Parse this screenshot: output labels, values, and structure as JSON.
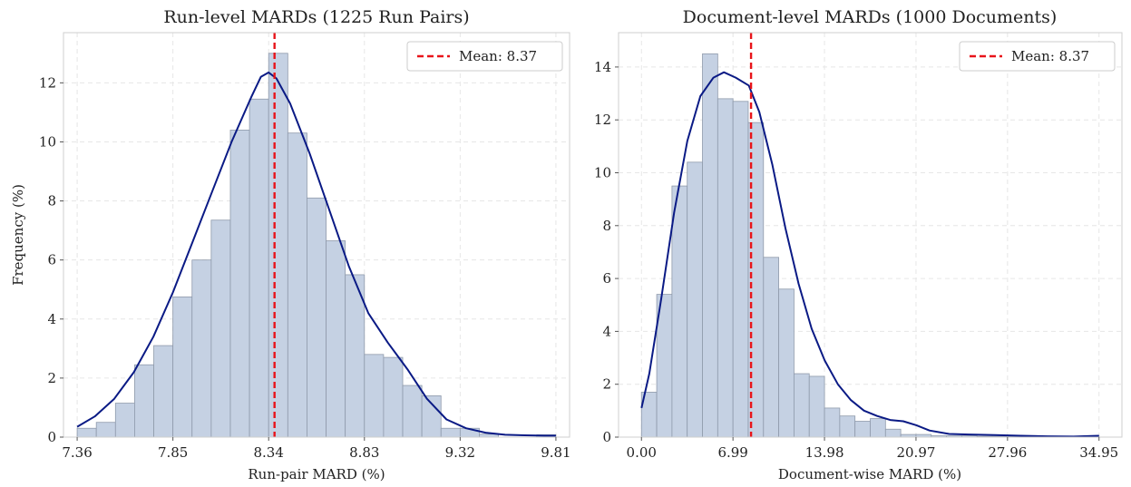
{
  "chart_data": [
    {
      "type": "bar",
      "title": "Run-level MARDs (1225 Run Pairs)",
      "xlabel": "Run-pair MARD (%)",
      "ylabel": "Frequency (%)",
      "x_ticks": [
        "7.36",
        "7.85",
        "8.34",
        "8.83",
        "9.32",
        "9.81"
      ],
      "x_tick_values": [
        7.36,
        7.85,
        8.34,
        8.83,
        9.32,
        9.81
      ],
      "y_ticks": [
        0,
        2,
        4,
        6,
        8,
        10,
        12
      ],
      "xlim": [
        7.29,
        9.88
      ],
      "ylim": [
        0,
        13.7
      ],
      "grid": true,
      "bin_edges": [
        7.36,
        7.458,
        7.556,
        7.654,
        7.752,
        7.85,
        7.948,
        8.046,
        8.144,
        8.242,
        8.34,
        8.438,
        8.536,
        8.634,
        8.732,
        8.83,
        8.928,
        9.026,
        9.124,
        9.222,
        9.32,
        9.418,
        9.516,
        9.614,
        9.712,
        9.81
      ],
      "values": [
        0.3,
        0.5,
        1.15,
        2.45,
        3.1,
        4.75,
        6.0,
        7.35,
        10.4,
        11.45,
        13.0,
        10.3,
        8.1,
        6.65,
        5.5,
        2.8,
        2.7,
        1.75,
        1.4,
        0.3,
        0.3,
        0.1,
        0.0,
        0.0,
        0.08
      ],
      "kde": {
        "x": [
          7.36,
          7.45,
          7.55,
          7.65,
          7.75,
          7.85,
          7.95,
          8.05,
          8.15,
          8.25,
          8.3,
          8.34,
          8.38,
          8.45,
          8.55,
          8.65,
          8.75,
          8.85,
          8.95,
          9.05,
          9.15,
          9.25,
          9.35,
          9.45,
          9.55,
          9.65,
          9.75,
          9.81
        ],
        "y": [
          0.35,
          0.7,
          1.3,
          2.2,
          3.4,
          4.9,
          6.6,
          8.3,
          10.0,
          11.5,
          12.2,
          12.35,
          12.15,
          11.3,
          9.6,
          7.7,
          5.8,
          4.2,
          3.2,
          2.3,
          1.3,
          0.6,
          0.3,
          0.15,
          0.08,
          0.06,
          0.05,
          0.05
        ]
      },
      "mean": 8.37,
      "legend": {
        "label": "Mean: 8.37",
        "location": "top-right"
      }
    },
    {
      "type": "bar",
      "title": "Document-level MARDs (1000 Documents)",
      "xlabel": "Document-wise MARD (%)",
      "ylabel": "",
      "x_ticks": [
        "0.00",
        "6.99",
        "13.98",
        "20.97",
        "27.96",
        "34.95"
      ],
      "x_tick_values": [
        0.0,
        6.99,
        13.98,
        20.97,
        27.96,
        34.95
      ],
      "y_ticks": [
        0,
        2,
        4,
        6,
        8,
        10,
        12,
        14
      ],
      "xlim": [
        -1.75,
        36.7
      ],
      "ylim": [
        0,
        15.3
      ],
      "grid": true,
      "bin_edges": [
        0.0,
        1.165,
        2.33,
        3.495,
        4.66,
        5.825,
        6.99,
        8.155,
        9.32,
        10.485,
        11.65,
        12.815,
        13.98,
        15.145,
        16.31,
        17.475,
        18.64,
        19.805,
        20.97,
        22.135,
        23.3,
        24.465,
        25.63,
        26.795,
        27.96,
        29.125,
        30.29,
        31.455,
        32.62,
        33.785,
        34.95
      ],
      "values": [
        1.7,
        5.4,
        9.5,
        10.4,
        14.5,
        12.8,
        12.7,
        11.9,
        6.8,
        5.6,
        2.4,
        2.3,
        1.1,
        0.8,
        0.6,
        0.7,
        0.3,
        0.1,
        0.1,
        0.05,
        0.05,
        0.05,
        0.03,
        0.03,
        0.03,
        0.02,
        0.02,
        0.02,
        0.03,
        0.05
      ],
      "kde": {
        "x": [
          0.0,
          0.6,
          1.5,
          2.5,
          3.5,
          4.5,
          5.5,
          6.3,
          7.2,
          8.2,
          9.0,
          10.0,
          11.0,
          12.0,
          13.0,
          14.0,
          15.0,
          16.0,
          17.0,
          18.0,
          19.0,
          20.0,
          21.0,
          22.0,
          23.5,
          25.0,
          27.0,
          29.0,
          31.0,
          33.0,
          34.95
        ],
        "y": [
          1.1,
          2.4,
          5.2,
          8.5,
          11.2,
          12.9,
          13.6,
          13.8,
          13.6,
          13.3,
          12.3,
          10.3,
          7.9,
          5.8,
          4.1,
          2.9,
          2.0,
          1.4,
          1.0,
          0.8,
          0.65,
          0.6,
          0.45,
          0.25,
          0.12,
          0.1,
          0.08,
          0.05,
          0.03,
          0.02,
          0.05
        ]
      },
      "mean": 8.37,
      "legend": {
        "label": "Mean: 8.37",
        "location": "top-right"
      }
    }
  ]
}
